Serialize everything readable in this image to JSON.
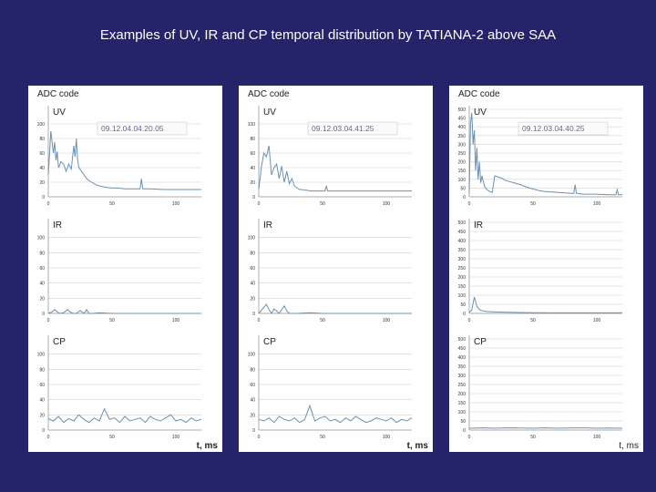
{
  "slide": {
    "title": "Examples of UV, IR and CP temporal distribution by TATIANA-2 above SAA"
  },
  "colors": {
    "background": "#25246a",
    "line": "#6a90b2",
    "grid": "#d0d0d0",
    "axis_text": "#333333"
  },
  "chart_data": [
    {
      "type": "line",
      "panel_id": "p1",
      "y_label": "ADC code",
      "x_label": "t, ms",
      "timestamp": "09.12.04.04.20.05",
      "x_ticks": [
        0,
        50,
        100
      ],
      "xlim": [
        0,
        120
      ],
      "subplots": [
        {
          "label": "UV",
          "ylim": [
            0,
            120
          ],
          "y_ticks": [
            0,
            20,
            40,
            60,
            80,
            100
          ],
          "x": [
            0,
            2,
            4,
            5,
            6,
            7,
            8,
            10,
            12,
            14,
            16,
            18,
            20,
            21,
            22,
            23,
            24,
            26,
            28,
            30,
            32,
            34,
            36,
            38,
            40,
            45,
            50,
            55,
            60,
            65,
            70,
            72,
            73,
            74,
            80,
            90,
            100,
            110,
            120
          ],
          "y": [
            30,
            90,
            60,
            75,
            50,
            62,
            40,
            48,
            45,
            35,
            45,
            38,
            70,
            55,
            80,
            50,
            40,
            35,
            30,
            25,
            22,
            20,
            18,
            16,
            15,
            13,
            12,
            12,
            11,
            11,
            11,
            11,
            25,
            11,
            11,
            10,
            10,
            10,
            10
          ]
        },
        {
          "label": "IR",
          "ylim": [
            0,
            120
          ],
          "y_ticks": [
            0,
            20,
            40,
            60,
            80,
            100
          ],
          "x": [
            0,
            3,
            5,
            7,
            9,
            12,
            15,
            18,
            20,
            22,
            25,
            28,
            30,
            32,
            35,
            40,
            50,
            60,
            70,
            80,
            90,
            100,
            110,
            120
          ],
          "y": [
            0,
            2,
            5,
            2,
            0,
            1,
            5,
            1,
            0,
            0,
            4,
            0,
            5,
            0,
            0,
            1,
            0,
            0,
            0,
            0,
            0,
            0,
            0,
            0
          ]
        },
        {
          "label": "CP",
          "ylim": [
            0,
            120
          ],
          "y_ticks": [
            0,
            20,
            40,
            60,
            80,
            100
          ],
          "x": [
            0,
            4,
            8,
            12,
            16,
            20,
            24,
            28,
            32,
            36,
            40,
            44,
            48,
            52,
            56,
            60,
            64,
            68,
            72,
            76,
            80,
            84,
            88,
            92,
            96,
            100,
            104,
            108,
            112,
            116,
            120
          ],
          "y": [
            15,
            12,
            18,
            10,
            15,
            12,
            20,
            14,
            10,
            16,
            12,
            28,
            14,
            16,
            10,
            18,
            12,
            14,
            16,
            10,
            18,
            14,
            12,
            16,
            20,
            12,
            14,
            10,
            16,
            12,
            14
          ]
        }
      ]
    },
    {
      "type": "line",
      "panel_id": "p2",
      "y_label": "ADC code",
      "x_label": "t, ms",
      "timestamp": "09.12.03.04.41.25",
      "x_ticks": [
        0,
        50,
        100
      ],
      "xlim": [
        0,
        120
      ],
      "subplots": [
        {
          "label": "UV",
          "ylim": [
            0,
            120
          ],
          "y_ticks": [
            0,
            20,
            40,
            60,
            80,
            100
          ],
          "x": [
            0,
            2,
            4,
            6,
            8,
            10,
            12,
            14,
            16,
            18,
            20,
            22,
            24,
            26,
            28,
            30,
            32,
            34,
            36,
            38,
            40,
            45,
            50,
            52,
            53,
            54,
            60,
            70,
            80,
            90,
            100,
            110,
            120
          ],
          "y": [
            10,
            40,
            60,
            55,
            70,
            30,
            40,
            45,
            25,
            42,
            20,
            35,
            18,
            25,
            15,
            12,
            10,
            10,
            9,
            9,
            8,
            8,
            8,
            8,
            15,
            8,
            8,
            8,
            8,
            8,
            8,
            8,
            8
          ]
        },
        {
          "label": "IR",
          "ylim": [
            0,
            120
          ],
          "y_ticks": [
            0,
            20,
            40,
            60,
            80,
            100
          ],
          "x": [
            0,
            4,
            6,
            8,
            10,
            12,
            16,
            20,
            22,
            24,
            30,
            40,
            50,
            60,
            70,
            80,
            90,
            100,
            110,
            120
          ],
          "y": [
            0,
            8,
            12,
            5,
            0,
            6,
            0,
            10,
            3,
            0,
            0,
            1,
            0,
            0,
            0,
            0,
            0,
            0,
            0,
            0
          ]
        },
        {
          "label": "CP",
          "ylim": [
            0,
            120
          ],
          "y_ticks": [
            0,
            20,
            40,
            60,
            80,
            100
          ],
          "x": [
            0,
            4,
            8,
            12,
            16,
            20,
            24,
            28,
            32,
            36,
            40,
            44,
            48,
            52,
            56,
            60,
            64,
            68,
            72,
            76,
            80,
            84,
            88,
            92,
            96,
            100,
            104,
            108,
            112,
            116,
            120
          ],
          "y": [
            14,
            12,
            16,
            10,
            18,
            14,
            12,
            16,
            10,
            14,
            32,
            12,
            16,
            18,
            12,
            14,
            10,
            16,
            12,
            18,
            14,
            10,
            12,
            16,
            14,
            12,
            16,
            10,
            14,
            12,
            16
          ]
        }
      ]
    },
    {
      "type": "line",
      "panel_id": "p3",
      "y_label": "ADC code",
      "x_label": "t, ms",
      "timestamp": "09.12.03.04.40.25",
      "x_ticks": [
        0,
        50,
        100
      ],
      "xlim": [
        0,
        120
      ],
      "subplots": [
        {
          "label": "UV",
          "ylim": [
            0,
            500
          ],
          "y_ticks": [
            0,
            50,
            100,
            150,
            200,
            250,
            300,
            350,
            400,
            450,
            500
          ],
          "x": [
            0,
            1,
            2,
            3,
            4,
            5,
            6,
            7,
            8,
            9,
            10,
            12,
            14,
            16,
            18,
            20,
            22,
            24,
            26,
            28,
            30,
            35,
            40,
            45,
            50,
            55,
            60,
            70,
            80,
            82,
            83,
            84,
            90,
            100,
            110,
            115,
            116,
            117,
            120
          ],
          "y": [
            20,
            420,
            480,
            300,
            380,
            150,
            280,
            100,
            200,
            80,
            120,
            60,
            40,
            30,
            25,
            120,
            115,
            110,
            105,
            95,
            90,
            80,
            70,
            55,
            45,
            35,
            30,
            25,
            20,
            20,
            70,
            20,
            15,
            15,
            12,
            12,
            40,
            12,
            12
          ]
        },
        {
          "label": "IR",
          "ylim": [
            0,
            500
          ],
          "y_ticks": [
            0,
            50,
            100,
            150,
            200,
            250,
            300,
            350,
            400,
            450,
            500
          ],
          "x": [
            0,
            2,
            4,
            6,
            8,
            10,
            14,
            20,
            30,
            40,
            50,
            60,
            70,
            80,
            90,
            100,
            110,
            120
          ],
          "y": [
            5,
            20,
            90,
            40,
            20,
            15,
            10,
            8,
            6,
            5,
            4,
            4,
            3,
            3,
            3,
            3,
            3,
            3
          ]
        },
        {
          "label": "CP",
          "ylim": [
            0,
            500
          ],
          "y_ticks": [
            0,
            50,
            100,
            150,
            200,
            250,
            300,
            350,
            400,
            450,
            500
          ],
          "x": [
            0,
            10,
            20,
            30,
            40,
            50,
            60,
            70,
            80,
            90,
            100,
            110,
            120
          ],
          "y": [
            10,
            12,
            10,
            12,
            11,
            10,
            12,
            10,
            11,
            12,
            10,
            11,
            10
          ]
        }
      ]
    }
  ]
}
